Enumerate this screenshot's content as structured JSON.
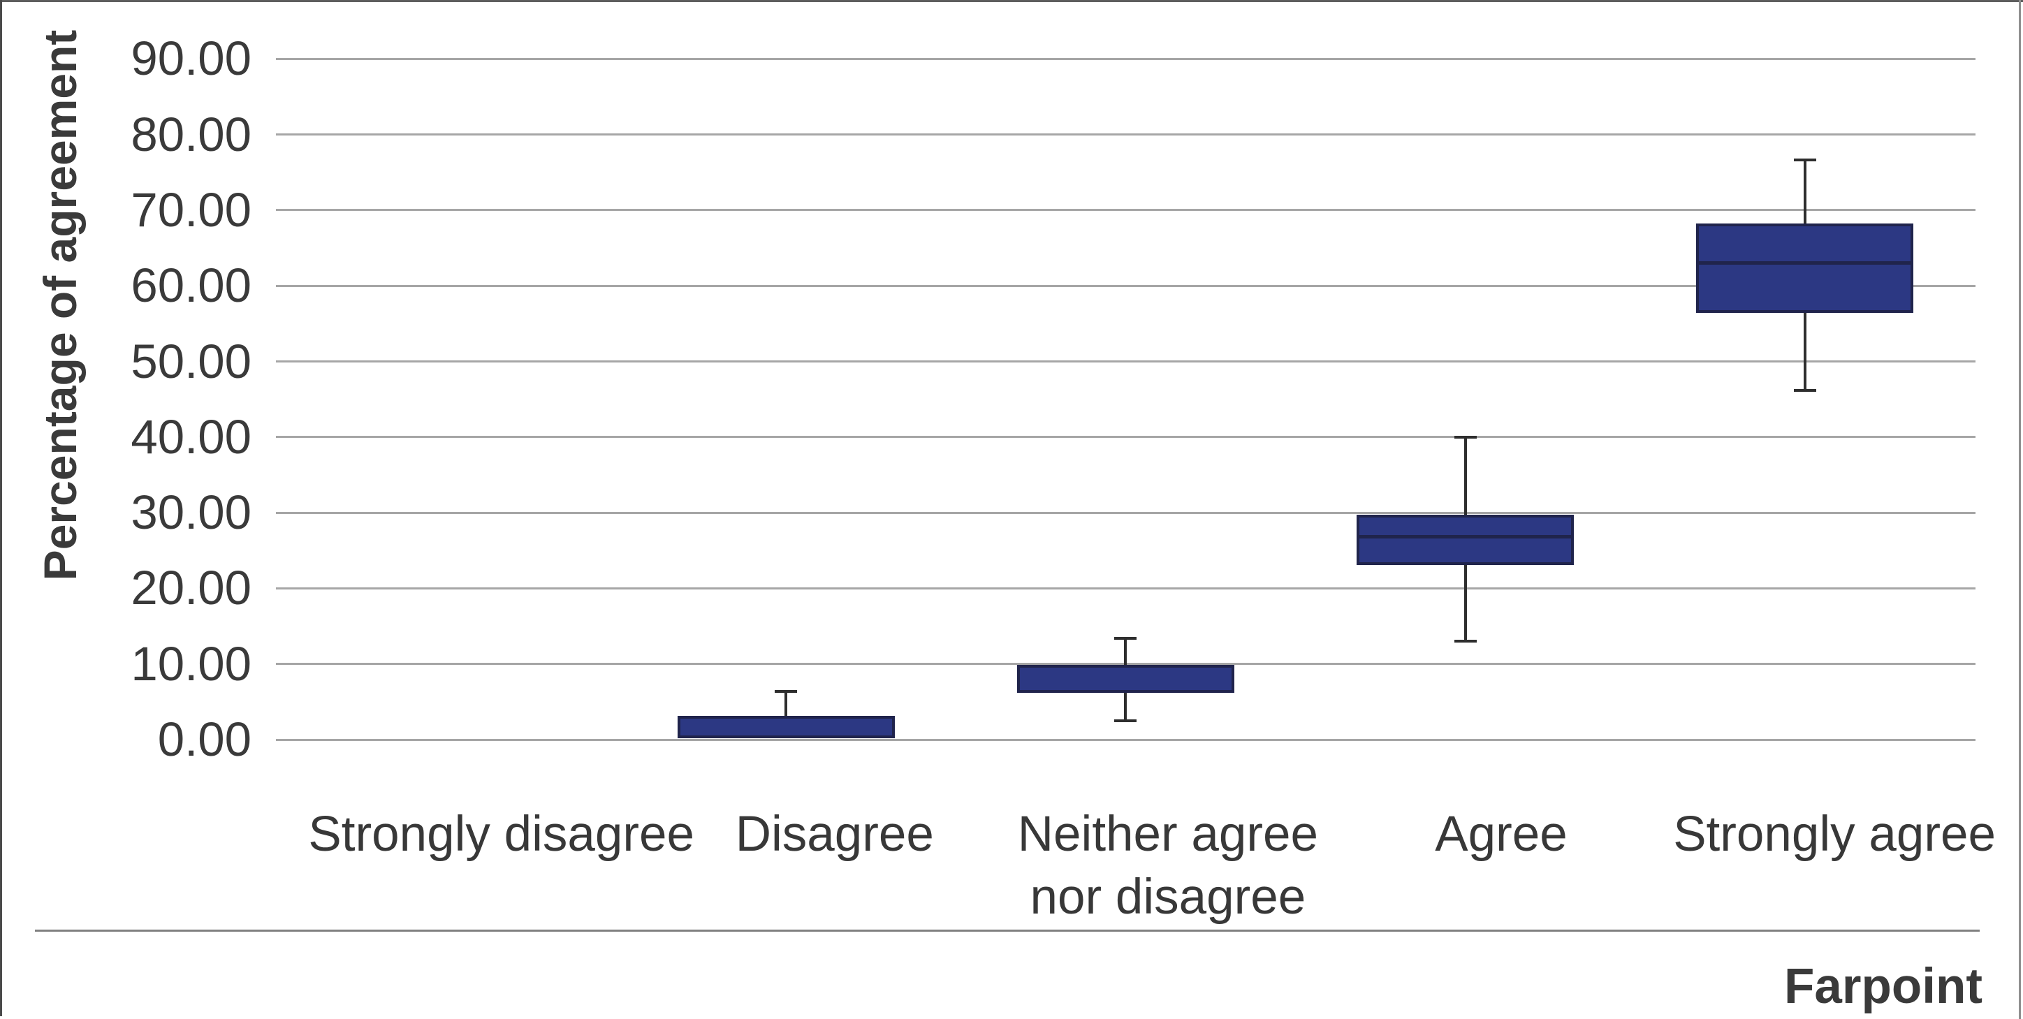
{
  "chart_data": {
    "type": "boxplot",
    "title": "",
    "xlabel": "",
    "ylabel": "Percentage of agreement",
    "footer_label": "Farpoint",
    "ylim": [
      0,
      90
    ],
    "grid": true,
    "legend": "none",
    "y_ticks": [
      {
        "value": 90,
        "label": "90.00"
      },
      {
        "value": 80,
        "label": "80.00"
      },
      {
        "value": 70,
        "label": "70.00"
      },
      {
        "value": 60,
        "label": "60.00"
      },
      {
        "value": 50,
        "label": "50.00"
      },
      {
        "value": 40,
        "label": "40.00"
      },
      {
        "value": 30,
        "label": "30.00"
      },
      {
        "value": 20,
        "label": "20.00"
      },
      {
        "value": 10,
        "label": "10.00"
      },
      {
        "value": 0,
        "label": "0.00"
      }
    ],
    "colors": {
      "box_fill": "#2c3883",
      "box_border": "#20244c",
      "median": "#20244c",
      "whisker": "#2e2e2e",
      "gridline": "#a6a6a6",
      "text": "#3a3a3a",
      "separator": "#808080"
    },
    "categories": [
      {
        "label_lines": [
          "Strongly disagree"
        ]
      },
      {
        "label_lines": [
          "Disagree"
        ],
        "box": {
          "q1": 0.2,
          "q3": 3.1,
          "whisker_high": 6.4
        }
      },
      {
        "label_lines": [
          "Neither agree",
          "nor disagree"
        ],
        "box": {
          "whisker_low": 2.5,
          "q1": 6.2,
          "q3": 9.9,
          "whisker_high": 13.4
        }
      },
      {
        "label_lines": [
          "Agree"
        ],
        "box": {
          "whisker_low": 13.0,
          "q1": 23.1,
          "median": 26.8,
          "q3": 29.7,
          "whisker_high": 40.0
        }
      },
      {
        "label_lines": [
          "Strongly agree"
        ],
        "box": {
          "whisker_low": 46.2,
          "q1": 56.4,
          "median": 63.0,
          "q3": 68.2,
          "whisker_high": 76.6
        }
      }
    ]
  }
}
